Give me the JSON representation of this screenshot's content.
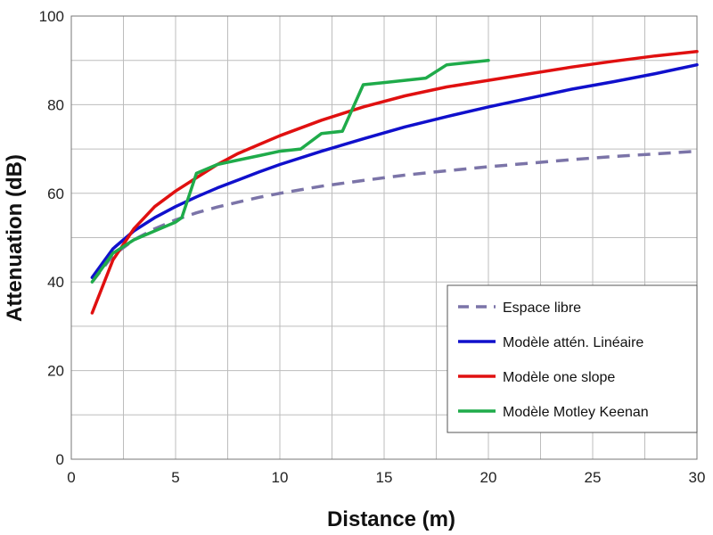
{
  "chart_data": {
    "type": "line",
    "title": "",
    "xlabel": "Distance (m)",
    "ylabel": "Attenuation (dB)",
    "xlim": [
      0,
      30
    ],
    "ylim": [
      0,
      100
    ],
    "xticks": [
      0,
      5,
      10,
      15,
      20,
      25,
      30
    ],
    "yticks": [
      0,
      20,
      40,
      60,
      80,
      100
    ],
    "grid": true,
    "legend_position": "bottom-right",
    "series": [
      {
        "name": "Espace libre",
        "color": "#7b74a8",
        "dash": true,
        "points": [
          [
            1,
            40
          ],
          [
            2,
            46
          ],
          [
            3,
            49.5
          ],
          [
            4,
            52
          ],
          [
            5,
            54
          ],
          [
            6,
            55.6
          ],
          [
            7,
            56.9
          ],
          [
            8,
            58
          ],
          [
            9,
            59.1
          ],
          [
            10,
            60
          ],
          [
            12,
            61.6
          ],
          [
            14,
            62.9
          ],
          [
            16,
            64.1
          ],
          [
            18,
            65.1
          ],
          [
            20,
            66
          ],
          [
            22,
            66.8
          ],
          [
            24,
            67.6
          ],
          [
            26,
            68.3
          ],
          [
            28,
            68.9
          ],
          [
            30,
            69.5
          ]
        ]
      },
      {
        "name": "Modèle attén. Linéaire",
        "color": "#1010cc",
        "dash": false,
        "points": [
          [
            1,
            41
          ],
          [
            2,
            47.5
          ],
          [
            3,
            51.5
          ],
          [
            4,
            54.5
          ],
          [
            5,
            57
          ],
          [
            6,
            59.2
          ],
          [
            7,
            61.2
          ],
          [
            8,
            63
          ],
          [
            9,
            64.8
          ],
          [
            10,
            66.5
          ],
          [
            12,
            69.5
          ],
          [
            14,
            72.3
          ],
          [
            16,
            75
          ],
          [
            18,
            77.3
          ],
          [
            20,
            79.5
          ],
          [
            22,
            81.5
          ],
          [
            24,
            83.5
          ],
          [
            26,
            85.2
          ],
          [
            28,
            87
          ],
          [
            30,
            89
          ]
        ]
      },
      {
        "name": "Modèle one slope",
        "color": "#e01010",
        "dash": false,
        "points": [
          [
            1,
            33
          ],
          [
            2,
            45
          ],
          [
            3,
            52
          ],
          [
            4,
            57
          ],
          [
            5,
            60.5
          ],
          [
            6,
            63.5
          ],
          [
            7,
            66.5
          ],
          [
            8,
            69
          ],
          [
            9,
            71
          ],
          [
            10,
            73
          ],
          [
            12,
            76.5
          ],
          [
            14,
            79.5
          ],
          [
            16,
            82
          ],
          [
            18,
            84
          ],
          [
            20,
            85.5
          ],
          [
            22,
            87
          ],
          [
            24,
            88.5
          ],
          [
            26,
            89.8
          ],
          [
            28,
            91
          ],
          [
            30,
            92
          ]
        ]
      },
      {
        "name": "Modèle Motley Keenan",
        "color": "#1fab4a",
        "dash": false,
        "points": [
          [
            1,
            40
          ],
          [
            2,
            46.5
          ],
          [
            3,
            49.5
          ],
          [
            4,
            51.5
          ],
          [
            5,
            53.5
          ],
          [
            5.3,
            54.5
          ],
          [
            6,
            64.5
          ],
          [
            7,
            66.5
          ],
          [
            8,
            67.5
          ],
          [
            9,
            68.5
          ],
          [
            10,
            69.5
          ],
          [
            11,
            70
          ],
          [
            12,
            73.5
          ],
          [
            13,
            74
          ],
          [
            14,
            84.5
          ],
          [
            15,
            85
          ],
          [
            16,
            85.5
          ],
          [
            17,
            86
          ],
          [
            18,
            89
          ],
          [
            19,
            89.5
          ],
          [
            20,
            90
          ]
        ]
      }
    ]
  }
}
